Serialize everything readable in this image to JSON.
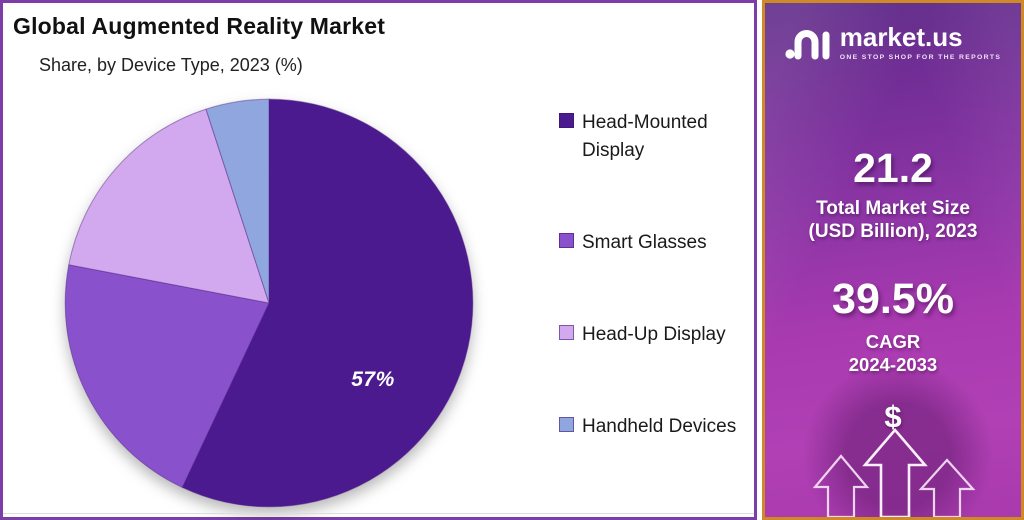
{
  "chart": {
    "title": "Global Augmented Reality Market",
    "subtitle": "Share, by Device Type, 2023 (%)"
  },
  "chart_data": {
    "type": "pie",
    "title": "Global Augmented Reality Market",
    "subtitle": "Share, by Device Type, 2023 (%)",
    "categories": [
      "Head-Mounted Display",
      "Smart Glasses",
      "Head-Up Display",
      "Handheld Devices"
    ],
    "values": [
      57,
      21,
      17,
      5
    ],
    "colors": [
      "#4a1a8e",
      "#8a51cc",
      "#d2a9ee",
      "#8fa7de"
    ],
    "displayed_slice_label": "57%",
    "start_angle": "top",
    "direction": "clockwise",
    "legend_position": "right"
  },
  "sidebar": {
    "brand": "market.us",
    "tagline": "ONE STOP SHOP FOR THE REPORTS",
    "market_size_value": "21.2",
    "market_size_label_line1": "Total Market Size",
    "market_size_label_line2": "(USD Billion), 2023",
    "cagr_value": "39.5%",
    "cagr_label_line1": "CAGR",
    "cagr_label_line2": "2024-2033",
    "dollar_symbol": "$",
    "accent_border_color": "#cf8a26",
    "panel_border_color": "#7c3da6"
  }
}
